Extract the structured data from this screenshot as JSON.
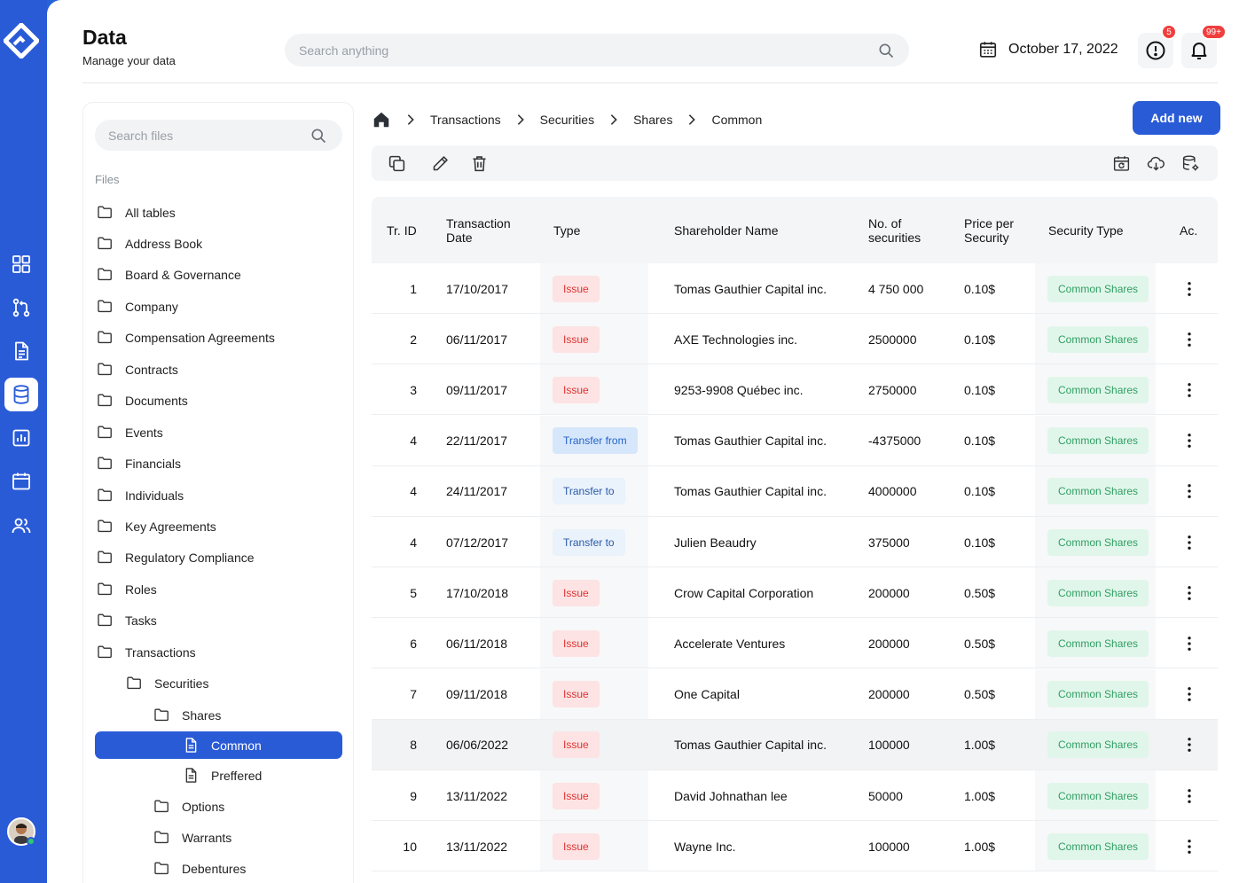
{
  "header": {
    "title": "Data",
    "subtitle": "Manage your data",
    "search_placeholder": "Search anything",
    "date": "October 17, 2022",
    "alerts_badge": "5",
    "notifications_badge": "99+"
  },
  "rail": {
    "items": [
      "dashboard-icon",
      "pull-request-icon",
      "document-icon",
      "database-icon",
      "report-icon",
      "calendar-icon",
      "users-icon"
    ],
    "active": "database-icon"
  },
  "files": {
    "search_placeholder": "Search files",
    "label": "Files",
    "items": [
      {
        "label": "All tables",
        "icon": "folder-icon"
      },
      {
        "label": "Address Book",
        "icon": "folder-icon"
      },
      {
        "label": "Board & Governance",
        "icon": "folder-icon"
      },
      {
        "label": "Company",
        "icon": "folder-icon"
      },
      {
        "label": "Compensation Agreements",
        "icon": "folder-icon"
      },
      {
        "label": "Contracts",
        "icon": "folder-icon"
      },
      {
        "label": "Documents",
        "icon": "folder-icon"
      },
      {
        "label": "Events",
        "icon": "folder-icon"
      },
      {
        "label": "Financials",
        "icon": "folder-icon"
      },
      {
        "label": "Individuals",
        "icon": "folder-icon"
      },
      {
        "label": "Key Agreements",
        "icon": "folder-icon"
      },
      {
        "label": "Regulatory Compliance",
        "icon": "folder-icon"
      },
      {
        "label": "Roles",
        "icon": "folder-icon"
      },
      {
        "label": "Tasks",
        "icon": "folder-icon"
      },
      {
        "label": "Transactions",
        "icon": "folder-icon"
      },
      {
        "label": "Securities",
        "icon": "folder-icon"
      },
      {
        "label": "Shares",
        "icon": "folder-icon"
      },
      {
        "label": "Common",
        "icon": "file-icon"
      },
      {
        "label": "Preffered",
        "icon": "file-icon"
      },
      {
        "label": "Options",
        "icon": "folder-icon"
      },
      {
        "label": "Warrants",
        "icon": "folder-icon"
      },
      {
        "label": "Debentures",
        "icon": "folder-icon"
      }
    ]
  },
  "breadcrumb": [
    "Transactions",
    "Securities",
    "Shares",
    "Common"
  ],
  "actions": {
    "add_new": "Add new"
  },
  "table": {
    "columns": [
      "Tr. ID",
      "Transaction\nDate",
      "Type",
      "Shareholder Name",
      "No. of\nsecurities",
      "Price per\nSecurity",
      "Security Type",
      "Ac."
    ],
    "rows": [
      {
        "id": "1",
        "date": "17/10/2017",
        "type": "Issue",
        "name": "Tomas Gauthier Capital inc.",
        "qty": "4 750 000",
        "price": "0.10$",
        "sec": "Common Shares"
      },
      {
        "id": "2",
        "date": "06/11/2017",
        "type": "Issue",
        "name": "AXE Technologies inc.",
        "qty": "2500000",
        "price": "0.10$",
        "sec": "Common Shares"
      },
      {
        "id": "3",
        "date": "09/11/2017",
        "type": "Issue",
        "name": "9253-9908 Québec inc.",
        "qty": "2750000",
        "price": "0.10$",
        "sec": "Common Shares"
      },
      {
        "id": "4",
        "date": "22/11/2017",
        "type": "Transfer from",
        "name": "Tomas Gauthier Capital inc.",
        "qty": "-4375000",
        "price": "0.10$",
        "sec": "Common Shares"
      },
      {
        "id": "4",
        "date": "24/11/2017",
        "type": "Transfer to",
        "name": "Tomas Gauthier Capital inc.",
        "qty": "4000000",
        "price": "0.10$",
        "sec": "Common Shares"
      },
      {
        "id": "4",
        "date": "07/12/2017",
        "type": "Transfer to",
        "name": "Julien Beaudry",
        "qty": "375000",
        "price": "0.10$",
        "sec": "Common Shares"
      },
      {
        "id": "5",
        "date": "17/10/2018",
        "type": "Issue",
        "name": "Crow Capital Corporation",
        "qty": "200000",
        "price": "0.50$",
        "sec": "Common Shares"
      },
      {
        "id": "6",
        "date": "06/11/2018",
        "type": "Issue",
        "name": "Accelerate Ventures",
        "qty": "200000",
        "price": "0.50$",
        "sec": "Common Shares"
      },
      {
        "id": "7",
        "date": "09/11/2018",
        "type": "Issue",
        "name": "One Capital",
        "qty": "200000",
        "price": "0.50$",
        "sec": "Common Shares"
      },
      {
        "id": "8",
        "date": "06/06/2022",
        "type": "Issue",
        "name": "Tomas Gauthier Capital inc.",
        "qty": "100000",
        "price": "1.00$",
        "sec": "Common Shares"
      },
      {
        "id": "9",
        "date": "13/11/2022",
        "type": "Issue",
        "name": "David Johnathan lee",
        "qty": "50000",
        "price": "1.00$",
        "sec": "Common Shares"
      },
      {
        "id": "10",
        "date": "13/11/2022",
        "type": "Issue",
        "name": "Wayne Inc.",
        "qty": "100000",
        "price": "1.00$",
        "sec": "Common Shares"
      }
    ],
    "highlighted_row": 9
  },
  "colors": {
    "accent": "#2a5bd7",
    "issue": "#e03131",
    "security": "#2f9e63"
  }
}
